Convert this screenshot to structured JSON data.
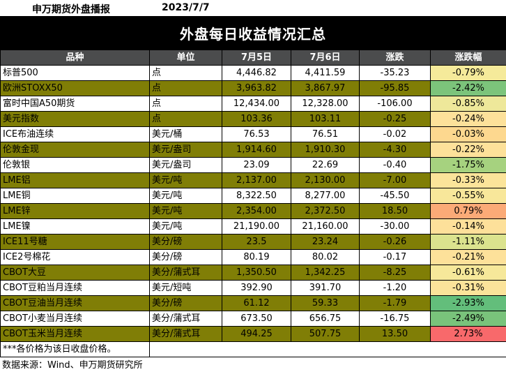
{
  "header": {
    "brand": "申万期货外盘播报",
    "date": "2023/7/7"
  },
  "title": "外盘每日收益情况汇总",
  "columns": [
    "品种",
    "单位",
    "7月5日",
    "7月6日",
    "涨跌",
    "涨跌幅"
  ],
  "rows": [
    {
      "name": "标普500",
      "unit": "点",
      "d1": "4,446.82",
      "d2": "4,411.59",
      "chg": "-35.23",
      "pct": "-0.79%",
      "pct_color": "#f5ea9a",
      "style": "white"
    },
    {
      "name": "欧洲STOXX50",
      "unit": "点",
      "d1": "3,963.82",
      "d2": "3,867.97",
      "chg": "-95.85",
      "pct": "-2.42%",
      "pct_color": "#7cc47b",
      "style": "olive"
    },
    {
      "name": "富时中国A50期货",
      "unit": "点",
      "d1": "12,434.00",
      "d2": "12,328.00",
      "chg": "-106.00",
      "pct": "-0.85%",
      "pct_color": "#eee89a",
      "style": "white"
    },
    {
      "name": "美元指数",
      "unit": "点",
      "d1": "103.36",
      "d2": "103.11",
      "chg": "-0.25",
      "pct": "-0.24%",
      "pct_color": "#fde19a",
      "style": "olive"
    },
    {
      "name": "ICE布油连续",
      "unit": "美元/桶",
      "d1": "76.53",
      "d2": "76.51",
      "chg": "-0.02",
      "pct": "-0.03%",
      "pct_color": "#fdd88f",
      "style": "white"
    },
    {
      "name": "伦敦金现",
      "unit": "美元/盎司",
      "d1": "1,914.60",
      "d2": "1,910.30",
      "chg": "-4.30",
      "pct": "-0.22%",
      "pct_color": "#fde19a",
      "style": "olive"
    },
    {
      "name": "伦敦银",
      "unit": "美元/盎司",
      "d1": "23.09",
      "d2": "22.69",
      "chg": "-0.40",
      "pct": "-1.75%",
      "pct_color": "#a6d27f",
      "style": "white"
    },
    {
      "name": "LME铝",
      "unit": "美元/吨",
      "d1": "2,137.00",
      "d2": "2,130.00",
      "chg": "-7.00",
      "pct": "-0.33%",
      "pct_color": "#fbe49a",
      "style": "olive"
    },
    {
      "name": "LME铜",
      "unit": "美元/吨",
      "d1": "8,322.50",
      "d2": "8,277.00",
      "chg": "-45.50",
      "pct": "-0.55%",
      "pct_color": "#f8e79a",
      "style": "white"
    },
    {
      "name": "LME锌",
      "unit": "美元/吨",
      "d1": "2,354.00",
      "d2": "2,372.50",
      "chg": "18.50",
      "pct": "0.79%",
      "pct_color": "#fbaa77",
      "style": "olive"
    },
    {
      "name": "LME镍",
      "unit": "美元/吨",
      "d1": "21,190.00",
      "d2": "21,160.00",
      "chg": "-30.00",
      "pct": "-0.14%",
      "pct_color": "#fde09a",
      "style": "white"
    },
    {
      "name": "ICE11号糖",
      "unit": "美分/磅",
      "d1": "23.5",
      "d2": "23.24",
      "chg": "-0.26",
      "pct": "-1.11%",
      "pct_color": "#dbe38e",
      "style": "olive"
    },
    {
      "name": "ICE2号棉花",
      "unit": "美分/磅",
      "d1": "80.19",
      "d2": "80.02",
      "chg": "-0.17",
      "pct": "-0.21%",
      "pct_color": "#fde19a",
      "style": "white"
    },
    {
      "name": "CBOT大豆",
      "unit": "美分/蒲式耳",
      "d1": "1,350.50",
      "d2": "1,342.25",
      "chg": "-8.25",
      "pct": "-0.61%",
      "pct_color": "#f6e89a",
      "style": "olive"
    },
    {
      "name": "CBOT豆粕当月连续",
      "unit": "美元/短吨",
      "d1": "392.90",
      "d2": "391.70",
      "chg": "-1.20",
      "pct": "-0.31%",
      "pct_color": "#fbe39a",
      "style": "white"
    },
    {
      "name": "CBOT豆油当月连续",
      "unit": "美分/磅",
      "d1": "61.12",
      "d2": "59.33",
      "chg": "-1.79",
      "pct": "-2.93%",
      "pct_color": "#63be7b",
      "style": "olive"
    },
    {
      "name": "CBOT小麦当月连续",
      "unit": "美分/蒲式耳",
      "d1": "673.50",
      "d2": "656.75",
      "chg": "-16.75",
      "pct": "-2.49%",
      "pct_color": "#79c37b",
      "style": "white"
    },
    {
      "name": "CBOT玉米当月连续",
      "unit": "美分/蒲式耳",
      "d1": "494.25",
      "d2": "507.75",
      "chg": "13.50",
      "pct": "2.73%",
      "pct_color": "#f8696b",
      "style": "olive"
    }
  ],
  "note": "***各价格为该日收盘价格。",
  "source": "数据来源：Wind、申万期货研究所"
}
